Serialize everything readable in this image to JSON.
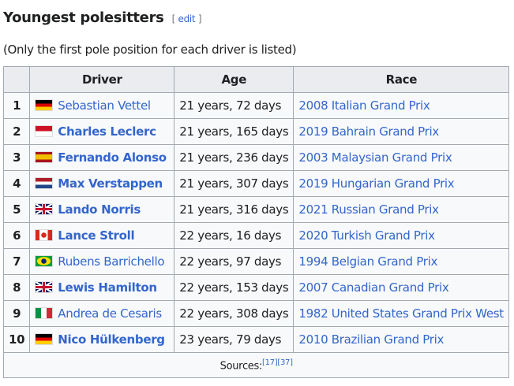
{
  "heading": {
    "title": "Youngest polesitters",
    "edit_open": "[ ",
    "edit_label": "edit",
    "edit_close": " ]"
  },
  "note": "(Only the first pole position for each driver is listed)",
  "table": {
    "headers": [
      "",
      "Driver",
      "Age",
      "Race"
    ],
    "rows": [
      {
        "rank": "1",
        "driver": "Sebastian Vettel",
        "flag": "germany",
        "bold": false,
        "age": "21 years, 72 days",
        "race": "2008 Italian Grand Prix"
      },
      {
        "rank": "2",
        "driver": "Charles Leclerc",
        "flag": "monaco",
        "bold": true,
        "age": "21 years, 165 days",
        "race": "2019 Bahrain Grand Prix"
      },
      {
        "rank": "3",
        "driver": "Fernando Alonso",
        "flag": "spain",
        "bold": true,
        "age": "21 years, 236 days",
        "race": "2003 Malaysian Grand Prix"
      },
      {
        "rank": "4",
        "driver": "Max Verstappen",
        "flag": "netherlands",
        "bold": true,
        "age": "21 years, 307 days",
        "race": "2019 Hungarian Grand Prix"
      },
      {
        "rank": "5",
        "driver": "Lando Norris",
        "flag": "united-kingdom",
        "bold": true,
        "age": "21 years, 316 days",
        "race": "2021 Russian Grand Prix"
      },
      {
        "rank": "6",
        "driver": "Lance Stroll",
        "flag": "canada",
        "bold": true,
        "age": "22 years, 16 days",
        "race": "2020 Turkish Grand Prix"
      },
      {
        "rank": "7",
        "driver": "Rubens Barrichello",
        "flag": "brazil",
        "bold": false,
        "age": "22 years, 97 days",
        "race": "1994 Belgian Grand Prix"
      },
      {
        "rank": "8",
        "driver": "Lewis Hamilton",
        "flag": "united-kingdom",
        "bold": true,
        "age": "22 years, 153 days",
        "race": "2007 Canadian Grand Prix"
      },
      {
        "rank": "9",
        "driver": "Andrea de Cesaris",
        "flag": "italy",
        "bold": false,
        "age": "22 years, 308 days",
        "race": "1982 United States Grand Prix West"
      },
      {
        "rank": "10",
        "driver": "Nico Hülkenberg",
        "flag": "germany",
        "bold": true,
        "age": "23 years, 79 days",
        "race": "2010 Brazilian Grand Prix"
      }
    ],
    "sources_label": "Sources:",
    "refs": [
      "[17]",
      "[37]"
    ]
  },
  "colors": {
    "link": "#3366cc",
    "header_bg": "#eaecf0",
    "border": "#a2a9b1"
  }
}
